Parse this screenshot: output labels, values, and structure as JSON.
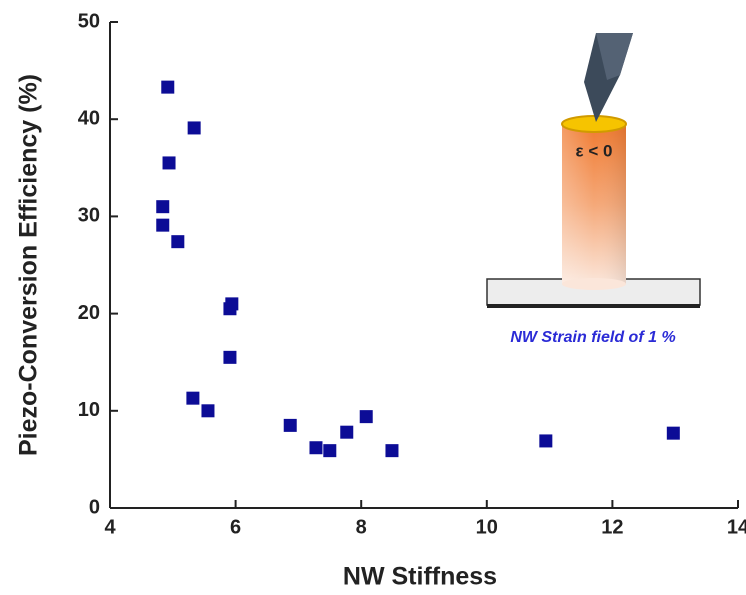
{
  "chart_data": {
    "type": "scatter",
    "x_label": "NW Stiffness",
    "y_label": "Piezo-Conversion Efficiency (%)",
    "annotations": [
      "ε < 0",
      "NW Strain field of 1 %"
    ],
    "series": [
      {
        "color": "#0c0c96",
        "x": [
          4.92,
          5.34,
          4.94,
          4.84,
          4.84,
          5.08,
          5.94,
          5.91,
          5.91,
          5.32,
          5.56,
          6.87,
          7.28,
          7.5,
          7.77,
          8.08,
          8.49,
          10.94,
          12.97
        ],
        "values": [
          43.3,
          39.1,
          35.5,
          31.0,
          29.1,
          27.4,
          21.0,
          20.5,
          15.5,
          11.3,
          10.0,
          8.5,
          6.2,
          5.9,
          7.8,
          9.4,
          5.9,
          6.9,
          7.7
        ]
      }
    ],
    "xlim": [
      4,
      14
    ],
    "xticks": [
      4,
      6,
      8,
      10,
      12,
      14
    ],
    "ylim": [
      0,
      50
    ],
    "yticks": [
      0,
      10,
      20,
      30,
      40,
      50
    ]
  }
}
